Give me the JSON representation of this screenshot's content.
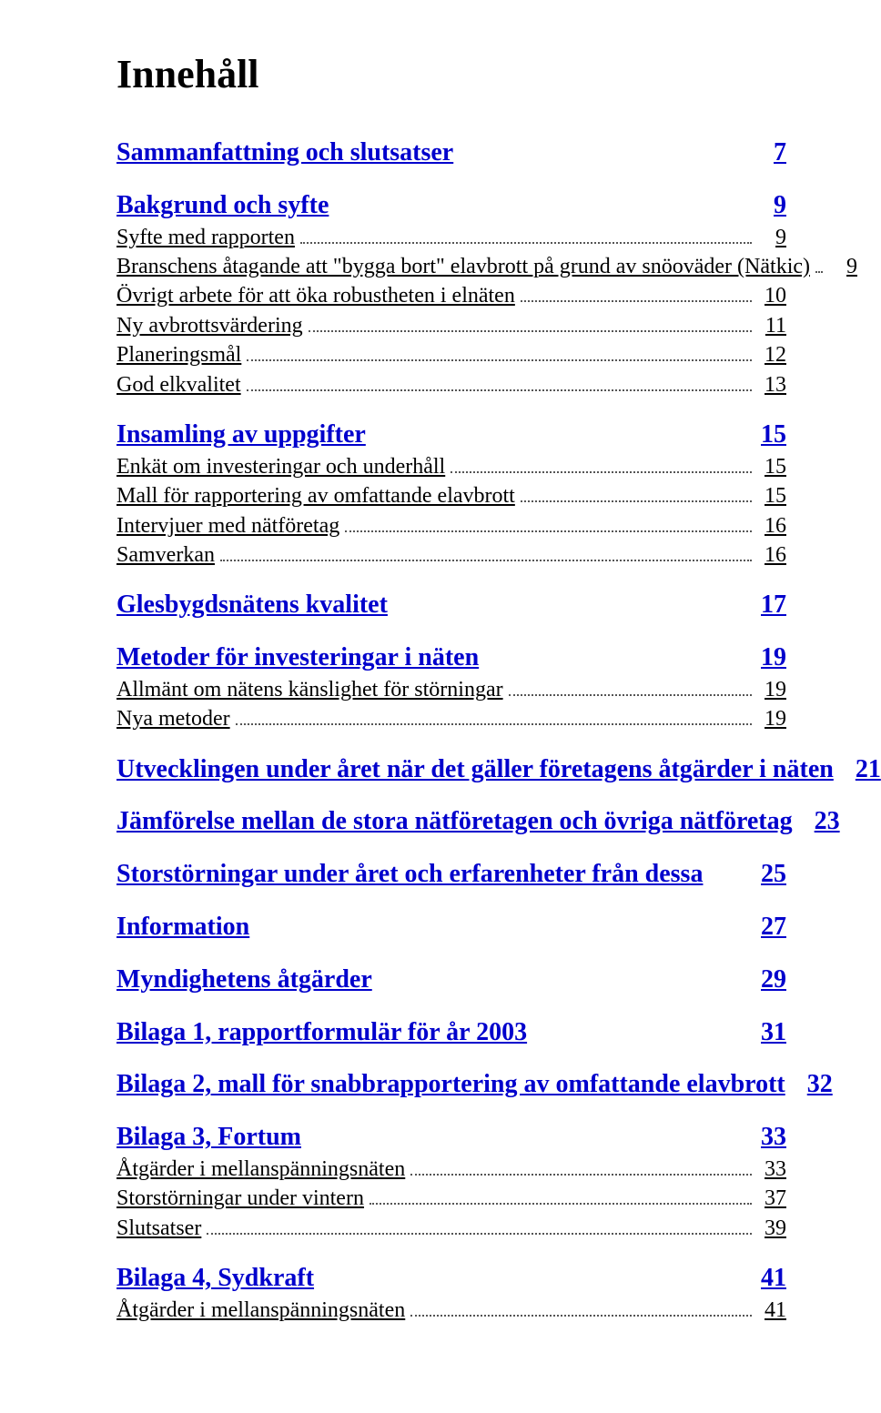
{
  "title": "Innehåll",
  "colors": {
    "link_blue": "#0000cc",
    "text_black": "#000000",
    "background": "#ffffff",
    "leader_dot": "#555555"
  },
  "typography": {
    "title_fontsize_pt": 33,
    "section_fontsize_pt": 21,
    "sub_fontsize_pt": 18,
    "font_family": "Times New Roman"
  },
  "toc": [
    {
      "type": "section",
      "label": "Sammanfattning och slutsatser",
      "page": "7"
    },
    {
      "type": "section",
      "label": "Bakgrund och syfte",
      "page": "9"
    },
    {
      "type": "sub",
      "label": "Syfte med rapporten",
      "page": "9"
    },
    {
      "type": "sub",
      "label": "Branschens åtagande att \"bygga bort\" elavbrott på grund av snöoväder (Nätkic)",
      "page": "9"
    },
    {
      "type": "sub",
      "label": "Övrigt arbete för att öka robustheten i elnäten",
      "page": "10"
    },
    {
      "type": "sub",
      "label": "Ny avbrottsvärdering",
      "page": "11"
    },
    {
      "type": "sub",
      "label": "Planeringsmål",
      "page": "12"
    },
    {
      "type": "sub",
      "label": "God elkvalitet",
      "page": "13"
    },
    {
      "type": "section",
      "label": "Insamling av uppgifter",
      "page": "15"
    },
    {
      "type": "sub",
      "label": "Enkät om investeringar och underhåll",
      "page": "15"
    },
    {
      "type": "sub",
      "label": "Mall för rapportering av omfattande elavbrott",
      "page": "15"
    },
    {
      "type": "sub",
      "label": "Intervjuer med nätföretag",
      "page": "16"
    },
    {
      "type": "sub",
      "label": "Samverkan",
      "page": "16"
    },
    {
      "type": "section",
      "label": "Glesbygdsnätens kvalitet",
      "page": "17"
    },
    {
      "type": "section",
      "label": "Metoder för investeringar i näten",
      "page": "19"
    },
    {
      "type": "sub",
      "label": "Allmänt om nätens känslighet för störningar",
      "page": "19"
    },
    {
      "type": "sub",
      "label": "Nya metoder",
      "page": "19"
    },
    {
      "type": "section",
      "label": "Utvecklingen under året när det gäller företagens åtgärder i näten",
      "page": "21"
    },
    {
      "type": "section",
      "label": "Jämförelse mellan de stora nätföretagen och övriga nätföretag",
      "page": "23"
    },
    {
      "type": "section",
      "label": "Storstörningar under året och erfarenheter från dessa",
      "page": "25"
    },
    {
      "type": "section",
      "label": "Information",
      "page": "27"
    },
    {
      "type": "section",
      "label": "Myndighetens åtgärder",
      "page": "29"
    },
    {
      "type": "section",
      "label": "Bilaga 1, rapportformulär för år 2003",
      "page": "31"
    },
    {
      "type": "section",
      "label": "Bilaga 2, mall för snabbrapportering av omfattande elavbrott",
      "page": "32"
    },
    {
      "type": "section",
      "label": "Bilaga 3, Fortum",
      "page": "33"
    },
    {
      "type": "sub",
      "label": "Åtgärder i mellanspänningsnäten",
      "page": "33"
    },
    {
      "type": "sub",
      "label": "Storstörningar under vintern",
      "page": "37"
    },
    {
      "type": "sub",
      "label": "Slutsatser",
      "page": "39"
    },
    {
      "type": "section",
      "label": "Bilaga 4, Sydkraft",
      "page": "41"
    },
    {
      "type": "sub",
      "label": "Åtgärder i mellanspänningsnäten",
      "page": "41"
    }
  ]
}
